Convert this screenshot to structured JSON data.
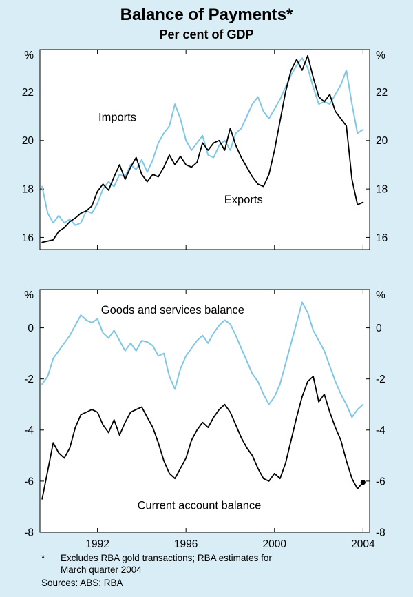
{
  "title": "Balance of Payments*",
  "subtitle": "Per cent of GDP",
  "colors": {
    "background": "#d8edf6",
    "panel": "#ffffff",
    "axis": "#000000",
    "black_line": "#000000",
    "blue_line": "#7ec7e7"
  },
  "x_ticks": [
    1992,
    1996,
    2000,
    2004
  ],
  "footnote": {
    "marker": "*",
    "line1": "Excludes RBA gold transactions; RBA estimates for",
    "line2": "March quarter 2004",
    "sources": "Sources: ABS; RBA"
  },
  "chart_data": [
    {
      "type": "line",
      "panel": "top",
      "unit": "%",
      "ylim": [
        15.5,
        23.75
      ],
      "yticks": [
        16,
        18,
        20,
        22
      ],
      "xlim": [
        1989.4,
        2004.3
      ],
      "x_start": 1989.5,
      "x_step": 0.25,
      "legend_position": "inline-labels",
      "grid": false,
      "series": [
        {
          "id": "imports",
          "name": "Imports",
          "color": "#7ec7e7",
          "width": 2,
          "label": {
            "x": 1992.9,
            "y": 20.8
          },
          "values": [
            18.1,
            17.0,
            16.6,
            16.9,
            16.6,
            16.75,
            16.5,
            16.6,
            17.1,
            17.0,
            17.4,
            18.0,
            18.3,
            18.1,
            18.6,
            18.5,
            19.0,
            18.8,
            19.2,
            18.7,
            19.2,
            19.9,
            20.3,
            20.6,
            21.5,
            20.9,
            20.0,
            19.6,
            19.9,
            20.2,
            19.4,
            19.3,
            19.8,
            20.0,
            19.6,
            20.3,
            20.5,
            21.0,
            21.5,
            21.8,
            21.2,
            20.9,
            21.3,
            21.7,
            22.2,
            22.7,
            23.1,
            23.4,
            23.0,
            22.2,
            21.5,
            21.6,
            21.5,
            21.9,
            22.3,
            22.9,
            21.5,
            20.3,
            20.45
          ]
        },
        {
          "id": "exports",
          "name": "Exports",
          "color": "#000000",
          "width": 1.8,
          "label": {
            "x": 1998.6,
            "y": 17.4
          },
          "values": [
            15.8,
            15.85,
            15.9,
            16.25,
            16.4,
            16.65,
            16.8,
            17.0,
            17.1,
            17.3,
            17.9,
            18.2,
            17.95,
            18.5,
            19.0,
            18.4,
            18.9,
            19.3,
            18.6,
            18.3,
            18.6,
            18.5,
            18.9,
            19.4,
            19.0,
            19.35,
            19.0,
            18.9,
            19.1,
            19.9,
            19.6,
            19.9,
            20.0,
            19.6,
            20.5,
            19.8,
            19.3,
            18.9,
            18.5,
            18.2,
            18.1,
            18.6,
            19.6,
            20.8,
            22.0,
            22.9,
            23.35,
            22.9,
            23.5,
            22.6,
            21.8,
            21.6,
            21.9,
            21.2,
            20.9,
            20.6,
            18.4,
            17.35,
            17.45
          ]
        }
      ]
    },
    {
      "type": "line",
      "panel": "bottom",
      "unit": "%",
      "ylim": [
        -8,
        1.5
      ],
      "yticks": [
        -8,
        -6,
        -4,
        -2,
        0
      ],
      "xlim": [
        1989.4,
        2004.3
      ],
      "x_start": 1989.5,
      "x_step": 0.25,
      "legend_position": "inline-labels",
      "grid": false,
      "series": [
        {
          "id": "goods-services-balance",
          "name": "Goods and services balance",
          "color": "#7ec7e7",
          "width": 2,
          "label": {
            "x": 1995.4,
            "y": 0.55
          },
          "values": [
            -2.2,
            -1.9,
            -1.2,
            -0.9,
            -0.6,
            -0.3,
            0.1,
            0.5,
            0.3,
            0.2,
            0.35,
            -0.2,
            -0.4,
            -0.1,
            -0.5,
            -0.9,
            -0.6,
            -0.9,
            -0.5,
            -0.55,
            -0.7,
            -1.1,
            -1.0,
            -1.9,
            -2.4,
            -1.6,
            -1.1,
            -0.8,
            -0.5,
            -0.3,
            -0.6,
            -0.2,
            0.1,
            0.3,
            0.15,
            -0.3,
            -0.8,
            -1.3,
            -1.8,
            -2.1,
            -2.6,
            -3.0,
            -2.7,
            -2.2,
            -1.4,
            -0.6,
            0.2,
            1.0,
            0.6,
            -0.1,
            -0.5,
            -0.9,
            -1.5,
            -2.1,
            -2.6,
            -3.0,
            -3.5,
            -3.2,
            -3.0
          ]
        },
        {
          "id": "current-account-balance",
          "name": "Current account balance",
          "color": "#000000",
          "width": 1.8,
          "end_dot": true,
          "label": {
            "x": 1996.6,
            "y": -7.1
          },
          "values": [
            -6.7,
            -5.6,
            -4.5,
            -4.9,
            -5.1,
            -4.7,
            -3.9,
            -3.4,
            -3.3,
            -3.2,
            -3.3,
            -3.8,
            -4.1,
            -3.6,
            -4.2,
            -3.7,
            -3.3,
            -3.2,
            -3.1,
            -3.5,
            -3.9,
            -4.5,
            -5.2,
            -5.7,
            -5.9,
            -5.5,
            -5.1,
            -4.4,
            -4.0,
            -3.7,
            -3.9,
            -3.5,
            -3.2,
            -3.0,
            -3.3,
            -3.8,
            -4.3,
            -4.7,
            -5.0,
            -5.5,
            -5.9,
            -6.0,
            -5.7,
            -5.9,
            -5.3,
            -4.4,
            -3.5,
            -2.7,
            -2.1,
            -1.9,
            -2.9,
            -2.6,
            -3.3,
            -3.9,
            -4.4,
            -5.2,
            -5.9,
            -6.3,
            -6.05
          ]
        }
      ]
    }
  ]
}
